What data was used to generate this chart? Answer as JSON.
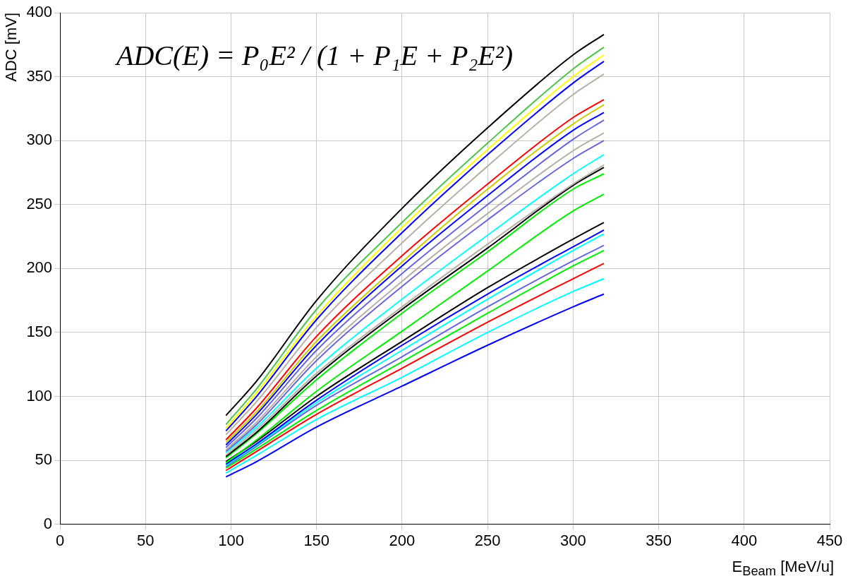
{
  "chart_data": {
    "type": "line",
    "xlabel": "E$_{Beam}$ [MeV/u]",
    "ylabel": "ADC [mV]",
    "annotations": [
      "ADC(E) = P₀E² / (1 + P₁E + P₂E²)"
    ],
    "x": [
      97,
      115,
      150,
      200,
      250,
      300,
      318
    ],
    "xlim": [
      0,
      450
    ],
    "xticks": [
      0,
      50,
      100,
      150,
      200,
      250,
      300,
      350,
      400,
      450
    ],
    "ylim": [
      0,
      400
    ],
    "yticks": [
      0,
      50,
      100,
      150,
      200,
      250,
      300,
      350,
      400
    ],
    "grid": true,
    "legend": false,
    "marker": "none",
    "line_style": "solid",
    "series": [
      {
        "color": "#000000",
        "values": [
          85,
          112,
          175,
          247,
          310,
          367,
          383
        ]
      },
      {
        "color": "#4cc44c",
        "values": [
          78,
          106,
          168,
          236,
          298,
          356,
          373
        ]
      },
      {
        "color": "#ffff00",
        "values": [
          75,
          103,
          163,
          232,
          293,
          350,
          367
        ]
      },
      {
        "color": "#0000ff",
        "values": [
          73,
          100,
          160,
          228,
          289,
          345,
          362
        ]
      },
      {
        "color": "#b8b0a8",
        "values": [
          70,
          96,
          154,
          220,
          280,
          336,
          352
        ]
      },
      {
        "color": "#ff0000",
        "values": [
          66,
          91,
          147,
          210,
          266,
          318,
          332
        ]
      },
      {
        "color": "#cccc00",
        "values": [
          64,
          88,
          143,
          205,
          262,
          313,
          328
        ]
      },
      {
        "color": "#0000ff",
        "values": [
          62,
          86,
          140,
          202,
          257,
          308,
          322
        ]
      },
      {
        "color": "#6666dd",
        "values": [
          60,
          83,
          136,
          196,
          250,
          301,
          316
        ]
      },
      {
        "color": "#b8b0a8",
        "values": [
          58,
          80,
          131,
          190,
          243,
          292,
          306
        ]
      },
      {
        "color": "#6666dd",
        "values": [
          57,
          78,
          128,
          186,
          238,
          286,
          300
        ]
      },
      {
        "color": "#00ffff",
        "values": [
          56,
          76,
          122,
          176,
          226,
          274,
          289
        ]
      },
      {
        "color": "#b8b0a8",
        "values": [
          54,
          74,
          118,
          170,
          219,
          266,
          281
        ]
      },
      {
        "color": "#000000",
        "values": [
          53,
          72,
          116,
          168,
          216,
          265,
          279
        ]
      },
      {
        "color": "#00ee00",
        "values": [
          52,
          71,
          113,
          165,
          213,
          262,
          274
        ]
      },
      {
        "color": "#00ee00",
        "values": [
          48,
          66,
          104,
          151,
          198,
          245,
          258
        ]
      },
      {
        "color": "#000000",
        "values": [
          49,
          65,
          100,
          143,
          185,
          223,
          236
        ]
      },
      {
        "color": "#0000ff",
        "values": [
          47,
          63,
          97,
          140,
          180,
          217,
          230
        ]
      },
      {
        "color": "#00ffff",
        "values": [
          46,
          62,
          95,
          136,
          176,
          214,
          227
        ]
      },
      {
        "color": "#6666dd",
        "values": [
          45,
          61,
          93,
          131,
          170,
          206,
          218
        ]
      },
      {
        "color": "#00ee00",
        "values": [
          44,
          59,
          89,
          127,
          165,
          202,
          214
        ]
      },
      {
        "color": "#ff0000",
        "values": [
          42,
          57,
          86,
          122,
          158,
          192,
          204
        ]
      },
      {
        "color": "#00ffff",
        "values": [
          40,
          54,
          82,
          115,
          150,
          182,
          192
        ]
      },
      {
        "color": "#0000ff",
        "values": [
          37,
          49,
          76,
          108,
          140,
          170,
          180
        ]
      }
    ]
  }
}
